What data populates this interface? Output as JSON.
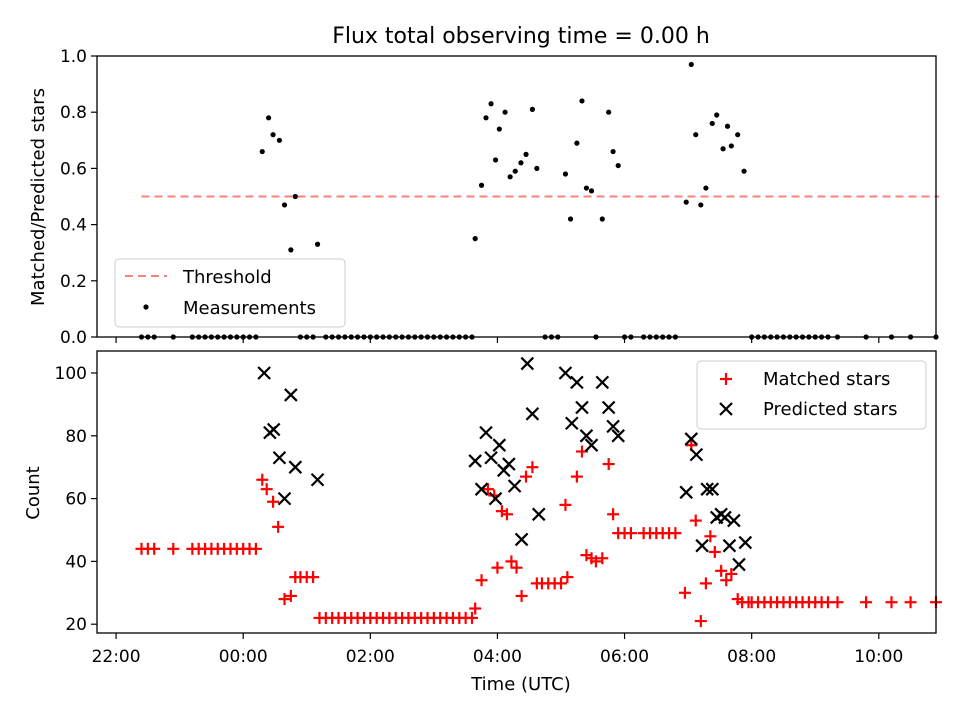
{
  "title": "Flux total observing time = 0.00 h",
  "chart_data": [
    {
      "type": "scatter",
      "ylabel": "Matched/Predicted stars",
      "xlabel": "",
      "ylim": [
        0,
        1.0
      ],
      "yticks": [
        "0.0",
        "0.2",
        "0.4",
        "0.6",
        "0.8",
        "1.0"
      ],
      "xlim_hours": [
        -2.3,
        10.9
      ],
      "threshold": {
        "name": "Threshold",
        "value": 0.5,
        "x_range_hours": [
          -1.6,
          10.95
        ],
        "color": "#ff7f7f",
        "style": "dashed"
      },
      "series": [
        {
          "name": "Measurements",
          "color": "#000000",
          "marker": "dot",
          "points": [
            [
              -1.6,
              0
            ],
            [
              -1.5,
              0
            ],
            [
              -1.4,
              0
            ],
            [
              -1.1,
              0
            ],
            [
              -0.8,
              0
            ],
            [
              -0.7,
              0
            ],
            [
              -0.6,
              0
            ],
            [
              -0.5,
              0
            ],
            [
              -0.4,
              0
            ],
            [
              -0.3,
              0
            ],
            [
              -0.2,
              0
            ],
            [
              -0.1,
              0
            ],
            [
              0.0,
              0
            ],
            [
              0.1,
              0
            ],
            [
              0.2,
              0
            ],
            [
              0.3,
              0.66
            ],
            [
              0.4,
              0.78
            ],
            [
              0.47,
              0.72
            ],
            [
              0.57,
              0.7
            ],
            [
              0.65,
              0.47
            ],
            [
              0.75,
              0.31
            ],
            [
              0.82,
              0.5
            ],
            [
              0.9,
              0
            ],
            [
              1.0,
              0
            ],
            [
              1.1,
              0
            ],
            [
              1.17,
              0.33
            ],
            [
              1.3,
              0
            ],
            [
              1.4,
              0
            ],
            [
              1.5,
              0
            ],
            [
              1.6,
              0
            ],
            [
              1.7,
              0
            ],
            [
              1.8,
              0
            ],
            [
              1.9,
              0
            ],
            [
              2.0,
              0
            ],
            [
              2.1,
              0
            ],
            [
              2.2,
              0
            ],
            [
              2.3,
              0
            ],
            [
              2.4,
              0
            ],
            [
              2.5,
              0
            ],
            [
              2.6,
              0
            ],
            [
              2.7,
              0
            ],
            [
              2.8,
              0
            ],
            [
              2.9,
              0
            ],
            [
              3.0,
              0
            ],
            [
              3.1,
              0
            ],
            [
              3.2,
              0
            ],
            [
              3.3,
              0
            ],
            [
              3.4,
              0
            ],
            [
              3.5,
              0
            ],
            [
              3.6,
              0
            ],
            [
              3.65,
              0.35
            ],
            [
              3.75,
              0.54
            ],
            [
              3.82,
              0.78
            ],
            [
              3.9,
              0.83
            ],
            [
              3.97,
              0.63
            ],
            [
              4.03,
              0.74
            ],
            [
              4.12,
              0.8
            ],
            [
              4.2,
              0.57
            ],
            [
              4.28,
              0.59
            ],
            [
              4.37,
              0.62
            ],
            [
              4.45,
              0.65
            ],
            [
              4.55,
              0.81
            ],
            [
              4.62,
              0.6
            ],
            [
              4.75,
              0
            ],
            [
              4.85,
              0
            ],
            [
              4.95,
              0
            ],
            [
              5.07,
              0.58
            ],
            [
              5.15,
              0.42
            ],
            [
              5.25,
              0.69
            ],
            [
              5.33,
              0.84
            ],
            [
              5.4,
              0.53
            ],
            [
              5.48,
              0.52
            ],
            [
              5.55,
              0
            ],
            [
              5.65,
              0.42
            ],
            [
              5.75,
              0.8
            ],
            [
              5.82,
              0.66
            ],
            [
              5.9,
              0.61
            ],
            [
              6.0,
              0
            ],
            [
              6.1,
              0
            ],
            [
              6.3,
              0
            ],
            [
              6.4,
              0
            ],
            [
              6.5,
              0
            ],
            [
              6.6,
              0
            ],
            [
              6.7,
              0
            ],
            [
              6.8,
              0
            ],
            [
              6.97,
              0.48
            ],
            [
              7.05,
              0.97
            ],
            [
              7.12,
              0.72
            ],
            [
              7.2,
              0.47
            ],
            [
              7.28,
              0.53
            ],
            [
              7.38,
              0.76
            ],
            [
              7.45,
              0.79
            ],
            [
              7.55,
              0.67
            ],
            [
              7.62,
              0.75
            ],
            [
              7.68,
              0.68
            ],
            [
              7.78,
              0.72
            ],
            [
              7.88,
              0.59
            ],
            [
              8.0,
              0
            ],
            [
              8.1,
              0
            ],
            [
              8.2,
              0
            ],
            [
              8.3,
              0
            ],
            [
              8.4,
              0
            ],
            [
              8.5,
              0
            ],
            [
              8.6,
              0
            ],
            [
              8.7,
              0
            ],
            [
              8.8,
              0
            ],
            [
              8.9,
              0
            ],
            [
              9.0,
              0
            ],
            [
              9.1,
              0
            ],
            [
              9.2,
              0
            ],
            [
              9.35,
              0
            ],
            [
              9.8,
              0
            ],
            [
              10.2,
              0
            ],
            [
              10.5,
              0
            ],
            [
              10.9,
              0
            ]
          ]
        }
      ],
      "legend": "lower-left"
    },
    {
      "type": "scatter",
      "ylabel": "Count",
      "xlabel": "Time (UTC)",
      "ylim": [
        17.2,
        107
      ],
      "yticks": [
        "20",
        "40",
        "60",
        "80",
        "100"
      ],
      "xticks": [
        "22:00",
        "00:00",
        "02:00",
        "04:00",
        "06:00",
        "08:00",
        "10:00"
      ],
      "xlim_hours": [
        -2.3,
        10.9
      ],
      "legend": "upper-right",
      "series": [
        {
          "name": "Matched stars",
          "color": "#ff0000",
          "marker": "plus",
          "points": [
            [
              -1.6,
              44
            ],
            [
              -1.5,
              44
            ],
            [
              -1.4,
              44
            ],
            [
              -1.1,
              44
            ],
            [
              -0.8,
              44
            ],
            [
              -0.7,
              44
            ],
            [
              -0.6,
              44
            ],
            [
              -0.5,
              44
            ],
            [
              -0.4,
              44
            ],
            [
              -0.3,
              44
            ],
            [
              -0.2,
              44
            ],
            [
              -0.1,
              44
            ],
            [
              0.0,
              44
            ],
            [
              0.1,
              44
            ],
            [
              0.2,
              44
            ],
            [
              0.3,
              66
            ],
            [
              0.37,
              63
            ],
            [
              0.47,
              59
            ],
            [
              0.55,
              51
            ],
            [
              0.65,
              28
            ],
            [
              0.75,
              29
            ],
            [
              0.82,
              35
            ],
            [
              0.9,
              35
            ],
            [
              1.0,
              35
            ],
            [
              1.1,
              35
            ],
            [
              1.2,
              22
            ],
            [
              1.3,
              22
            ],
            [
              1.4,
              22
            ],
            [
              1.5,
              22
            ],
            [
              1.6,
              22
            ],
            [
              1.7,
              22
            ],
            [
              1.8,
              22
            ],
            [
              1.9,
              22
            ],
            [
              2.0,
              22
            ],
            [
              2.1,
              22
            ],
            [
              2.2,
              22
            ],
            [
              2.3,
              22
            ],
            [
              2.4,
              22
            ],
            [
              2.5,
              22
            ],
            [
              2.6,
              22
            ],
            [
              2.7,
              22
            ],
            [
              2.8,
              22
            ],
            [
              2.9,
              22
            ],
            [
              3.0,
              22
            ],
            [
              3.1,
              22
            ],
            [
              3.2,
              22
            ],
            [
              3.3,
              22
            ],
            [
              3.4,
              22
            ],
            [
              3.5,
              22
            ],
            [
              3.6,
              22
            ],
            [
              3.65,
              25
            ],
            [
              3.75,
              34
            ],
            [
              3.85,
              63
            ],
            [
              3.95,
              61
            ],
            [
              4.0,
              38
            ],
            [
              4.07,
              56
            ],
            [
              4.15,
              55
            ],
            [
              4.22,
              40
            ],
            [
              4.3,
              38
            ],
            [
              4.38,
              29
            ],
            [
              4.45,
              67
            ],
            [
              4.55,
              70
            ],
            [
              4.62,
              33
            ],
            [
              4.7,
              33
            ],
            [
              4.8,
              33
            ],
            [
              4.9,
              33
            ],
            [
              5.0,
              33
            ],
            [
              5.1,
              35
            ],
            [
              5.07,
              58
            ],
            [
              5.25,
              67
            ],
            [
              5.33,
              75
            ],
            [
              5.4,
              42
            ],
            [
              5.48,
              41
            ],
            [
              5.55,
              40
            ],
            [
              5.65,
              41
            ],
            [
              5.75,
              71
            ],
            [
              5.82,
              55
            ],
            [
              5.9,
              49
            ],
            [
              6.0,
              49
            ],
            [
              6.1,
              49
            ],
            [
              6.3,
              49
            ],
            [
              6.4,
              49
            ],
            [
              6.5,
              49
            ],
            [
              6.6,
              49
            ],
            [
              6.7,
              49
            ],
            [
              6.8,
              49
            ],
            [
              6.95,
              30
            ],
            [
              7.05,
              77
            ],
            [
              7.12,
              53
            ],
            [
              7.2,
              21
            ],
            [
              7.28,
              33
            ],
            [
              7.35,
              48
            ],
            [
              7.42,
              43
            ],
            [
              7.52,
              37
            ],
            [
              7.6,
              34
            ],
            [
              7.68,
              36
            ],
            [
              7.78,
              28
            ],
            [
              7.85,
              27
            ],
            [
              7.95,
              27
            ],
            [
              8.0,
              27
            ],
            [
              8.1,
              27
            ],
            [
              8.2,
              27
            ],
            [
              8.3,
              27
            ],
            [
              8.4,
              27
            ],
            [
              8.5,
              27
            ],
            [
              8.6,
              27
            ],
            [
              8.7,
              27
            ],
            [
              8.8,
              27
            ],
            [
              8.9,
              27
            ],
            [
              9.0,
              27
            ],
            [
              9.1,
              27
            ],
            [
              9.2,
              27
            ],
            [
              9.35,
              27
            ],
            [
              9.8,
              27
            ],
            [
              10.2,
              27
            ],
            [
              10.5,
              27
            ],
            [
              10.9,
              27
            ]
          ]
        },
        {
          "name": "Predicted stars",
          "color": "#000000",
          "marker": "x",
          "points": [
            [
              0.33,
              100
            ],
            [
              0.42,
              81
            ],
            [
              0.48,
              82
            ],
            [
              0.57,
              73
            ],
            [
              0.65,
              60
            ],
            [
              0.75,
              93
            ],
            [
              0.82,
              70
            ],
            [
              1.17,
              66
            ],
            [
              3.65,
              72
            ],
            [
              3.75,
              63
            ],
            [
              3.82,
              81
            ],
            [
              3.9,
              73
            ],
            [
              3.97,
              60
            ],
            [
              4.03,
              77
            ],
            [
              4.1,
              69
            ],
            [
              4.18,
              71
            ],
            [
              4.27,
              64
            ],
            [
              4.38,
              47
            ],
            [
              4.47,
              103
            ],
            [
              4.55,
              87
            ],
            [
              4.65,
              55
            ],
            [
              5.07,
              100
            ],
            [
              5.17,
              84
            ],
            [
              5.25,
              97
            ],
            [
              5.33,
              89
            ],
            [
              5.4,
              80
            ],
            [
              5.48,
              77
            ],
            [
              5.65,
              97
            ],
            [
              5.75,
              89
            ],
            [
              5.82,
              83
            ],
            [
              5.9,
              80
            ],
            [
              6.97,
              62
            ],
            [
              7.05,
              79
            ],
            [
              7.13,
              74
            ],
            [
              7.22,
              45
            ],
            [
              7.3,
              63
            ],
            [
              7.38,
              63
            ],
            [
              7.45,
              54
            ],
            [
              7.52,
              55
            ],
            [
              7.58,
              54
            ],
            [
              7.65,
              45
            ],
            [
              7.72,
              53
            ],
            [
              7.8,
              39
            ],
            [
              7.9,
              46
            ]
          ]
        }
      ]
    }
  ]
}
